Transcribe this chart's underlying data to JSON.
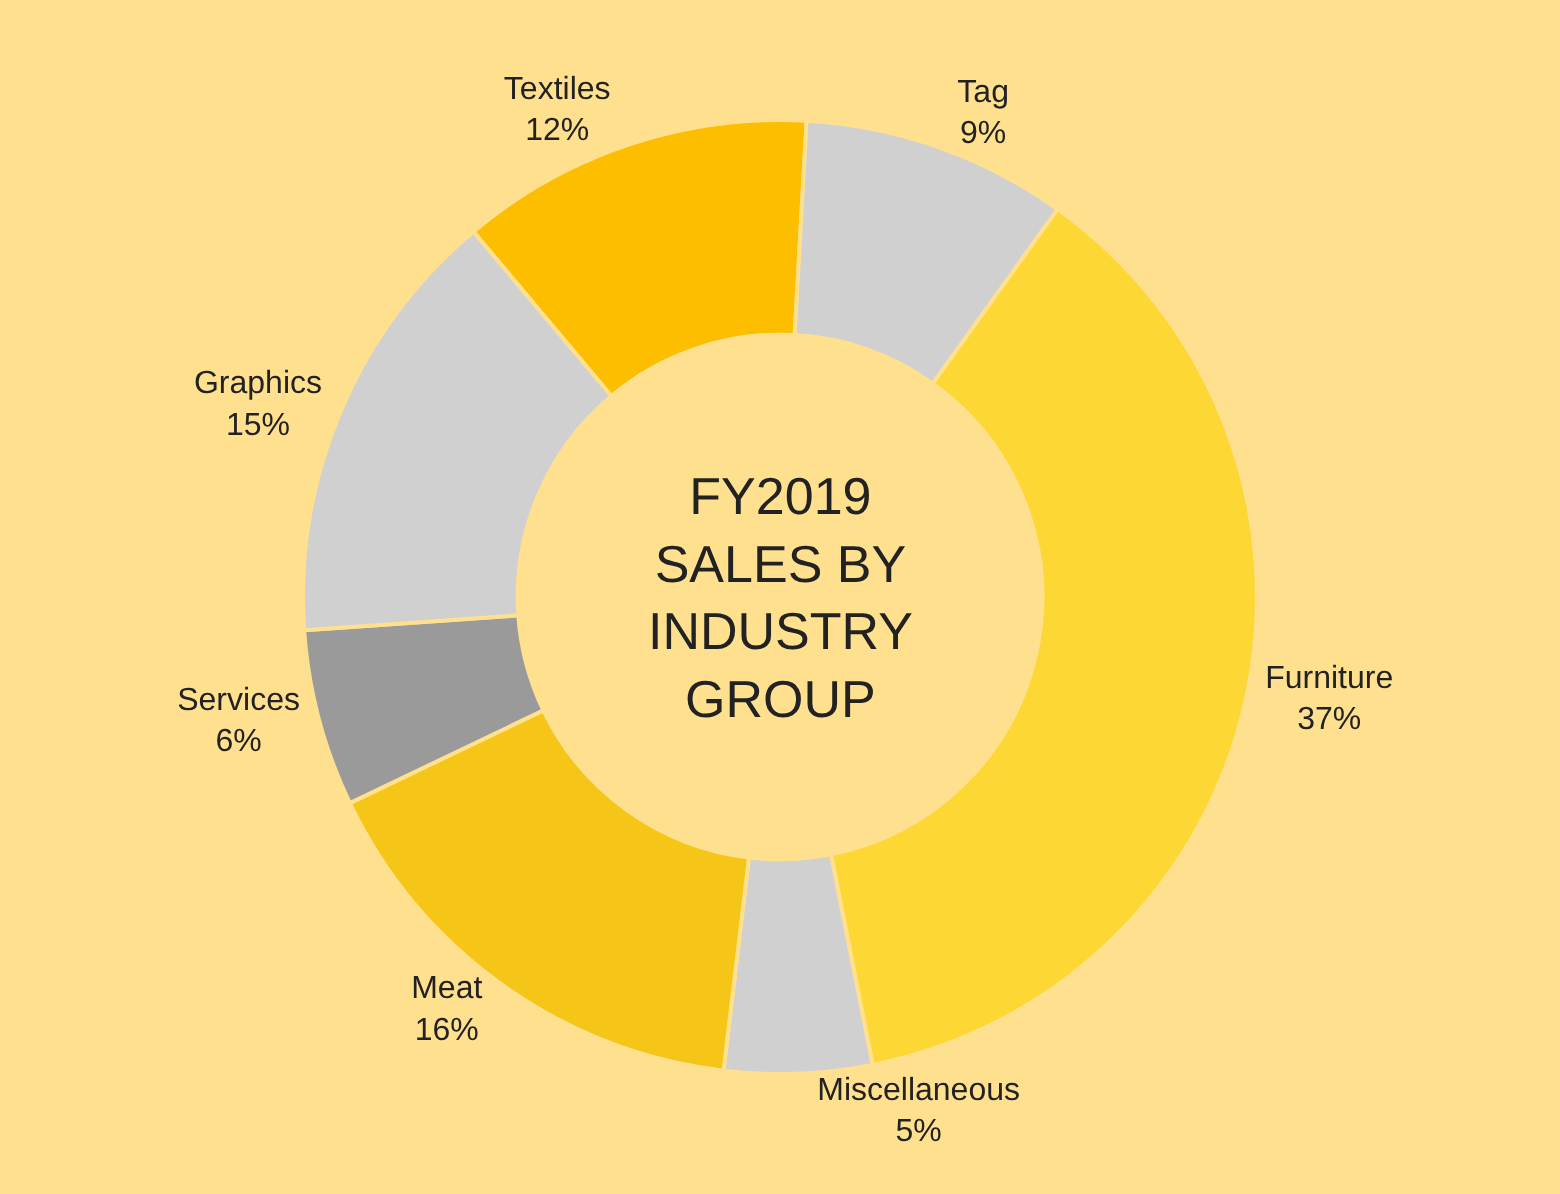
{
  "chart_data": {
    "type": "donut",
    "title": "FY2019\nSALES BY\nINDUSTRY\nGROUP",
    "categories": [
      "Textiles",
      "Tag",
      "Furniture",
      "Miscellaneous",
      "Meat",
      "Services",
      "Graphics"
    ],
    "values": [
      12,
      9,
      37,
      5,
      16,
      6,
      15
    ],
    "colors": [
      "#fdbe00",
      "#d0d0d0",
      "#fdd835",
      "#d0d0d0",
      "#f5c518",
      "#9a9a9a",
      "#d0d0d0"
    ],
    "value_labels": [
      "12%",
      "9%",
      "37%",
      "5%",
      "16%",
      "6%",
      "15%"
    ],
    "legend": false
  }
}
